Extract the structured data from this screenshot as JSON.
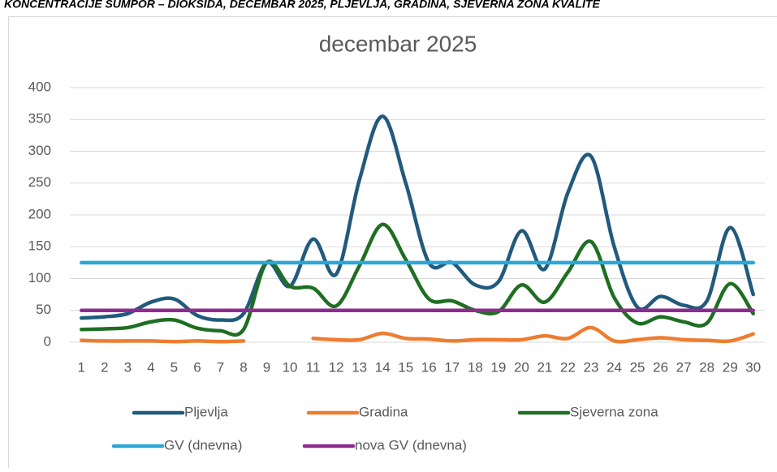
{
  "header": "KONCENTRACIJE SUMPOR – DIOKSIDA, DECEMBAR 2025, PLJEVLJA, GRADINA, SJEVERNA ZONA KVALITE",
  "chart_data": {
    "type": "line",
    "title": "decembar 2025",
    "categories": [
      "1",
      "2",
      "3",
      "4",
      "5",
      "6",
      "7",
      "8",
      "9",
      "10",
      "11",
      "12",
      "13",
      "14",
      "15",
      "16",
      "17",
      "18",
      "19",
      "20",
      "21",
      "22",
      "23",
      "24",
      "25",
      "26",
      "27",
      "28",
      "29",
      "30"
    ],
    "series": [
      {
        "name": "Pljevlja",
        "color": "#215a7c",
        "values": [
          38,
          40,
          45,
          63,
          68,
          42,
          35,
          45,
          125,
          88,
          162,
          107,
          255,
          355,
          250,
          125,
          125,
          90,
          95,
          175,
          115,
          235,
          292,
          150,
          55,
          72,
          58,
          65,
          180,
          75
        ]
      },
      {
        "name": "Gradina",
        "color": "#ed7d31",
        "values": [
          3,
          2,
          2,
          2,
          1,
          2,
          1,
          2,
          null,
          null,
          6,
          4,
          4,
          14,
          6,
          5,
          2,
          4,
          4,
          4,
          10,
          6,
          23,
          2,
          4,
          7,
          4,
          3,
          2,
          13
        ]
      },
      {
        "name": "Sjeverna zona",
        "color": "#1f6e23",
        "values": [
          20,
          21,
          23,
          32,
          35,
          22,
          18,
          20,
          125,
          88,
          85,
          57,
          120,
          185,
          130,
          68,
          65,
          50,
          48,
          90,
          63,
          110,
          158,
          70,
          30,
          40,
          32,
          30,
          92,
          45
        ]
      },
      {
        "name": "GV (dnevna)",
        "color": "#2ba6d8",
        "values": [
          125,
          125,
          125,
          125,
          125,
          125,
          125,
          125,
          125,
          125,
          125,
          125,
          125,
          125,
          125,
          125,
          125,
          125,
          125,
          125,
          125,
          125,
          125,
          125,
          125,
          125,
          125,
          125,
          125,
          125
        ]
      },
      {
        "name": "nova GV (dnevna)",
        "color": "#8f2b8f",
        "values": [
          50,
          50,
          50,
          50,
          50,
          50,
          50,
          50,
          50,
          50,
          50,
          50,
          50,
          50,
          50,
          50,
          50,
          50,
          50,
          50,
          50,
          50,
          50,
          50,
          50,
          50,
          50,
          50,
          50,
          50
        ]
      }
    ],
    "ylim": [
      0,
      400
    ],
    "yticks": [
      0,
      50,
      100,
      150,
      200,
      250,
      300,
      350,
      400
    ],
    "grid": true,
    "legend": "bottom"
  }
}
